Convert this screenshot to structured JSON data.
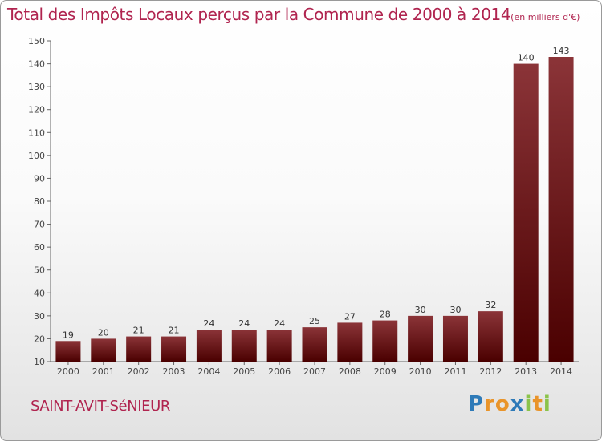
{
  "title": "Total des Impôts Locaux perçus par la Commune de 2000 à 2014",
  "title_unit": "(en milliers d'€)",
  "commune": "SAINT-AVIT-SéNIEUR",
  "logo": {
    "letters": [
      "P",
      "r",
      "o",
      "x",
      "i",
      "t",
      "i"
    ],
    "colors": [
      "#2e7ab8",
      "#e9942a",
      "#e9942a",
      "#2e7ab8",
      "#8bc34a",
      "#e9942a",
      "#8bc34a"
    ]
  },
  "colors": {
    "title": "#b0244f",
    "bar_top": "#8b3438",
    "bar_bottom": "#4a0000"
  },
  "chart_data": {
    "type": "bar",
    "categories": [
      "2000",
      "2001",
      "2002",
      "2003",
      "2004",
      "2005",
      "2006",
      "2007",
      "2008",
      "2009",
      "2010",
      "2011",
      "2012",
      "2013",
      "2014"
    ],
    "values": [
      19,
      20,
      21,
      21,
      24,
      24,
      24,
      25,
      27,
      28,
      30,
      30,
      32,
      140,
      143
    ],
    "value_labels": [
      "19",
      "20",
      "21",
      "21",
      "24",
      "24",
      "24",
      "25",
      "27",
      "28",
      "30",
      "30",
      "32",
      "140",
      "143"
    ],
    "ylim": [
      10,
      150
    ],
    "yticks": [
      10,
      20,
      30,
      40,
      50,
      60,
      70,
      80,
      90,
      100,
      110,
      120,
      130,
      140,
      150
    ],
    "ytick_labels": [
      "10",
      "20",
      "30",
      "40",
      "50",
      "60",
      "70",
      "80",
      "90",
      "100",
      "110",
      "120",
      "130",
      "140",
      "150"
    ],
    "grid": false,
    "legend": "none"
  }
}
